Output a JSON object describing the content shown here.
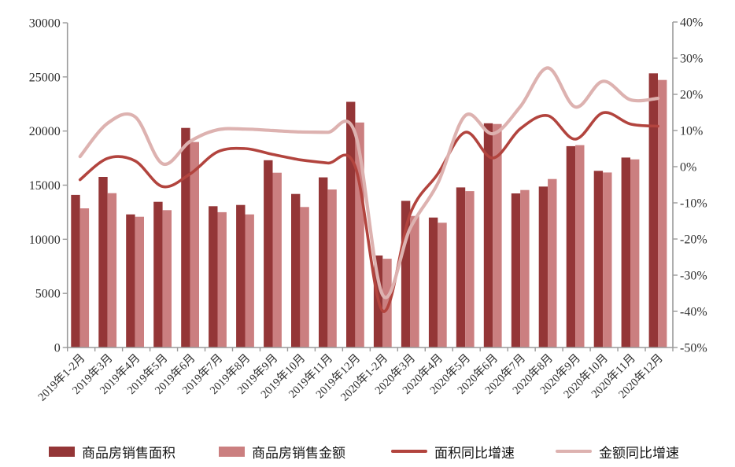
{
  "chart_data": {
    "type": "combo-bar-line",
    "title": "",
    "categories": [
      "2019年1-2月",
      "2019年3月",
      "2019年4月",
      "2019年5月",
      "2019年6月",
      "2019年7月",
      "2019年8月",
      "2019年9月",
      "2019年10月",
      "2019年11月",
      "2019年12月",
      "2020年1-2月",
      "2020年3月",
      "2020年4月",
      "2020年5月",
      "2020年6月",
      "2020年7月",
      "2020年8月",
      "2020年9月",
      "2020年10月",
      "2020年11月",
      "2020年12月"
    ],
    "bar_series": [
      {
        "name": "商品房销售面积",
        "color": "#943637",
        "values": [
          14100,
          15760,
          12300,
          13460,
          20290,
          13050,
          13170,
          17300,
          14190,
          15720,
          22700,
          8500,
          13550,
          12010,
          14790,
          20720,
          14240,
          14870,
          18600,
          16320,
          17550,
          25330
        ]
      },
      {
        "name": "商品房销售金额",
        "color": "#cb7f80",
        "values": [
          12860,
          14260,
          12080,
          12690,
          18990,
          12500,
          12300,
          16150,
          12980,
          14600,
          20790,
          8200,
          12150,
          11530,
          14450,
          20650,
          14550,
          15570,
          18700,
          16170,
          17380,
          24720
        ]
      }
    ],
    "line_series": [
      {
        "name": "面积同比增速",
        "color": "#b2443e",
        "stroke_width": 3.6,
        "values": [
          -3.6,
          2.3,
          1.6,
          -5.5,
          -2.0,
          4.1,
          5.0,
          3.4,
          1.9,
          1.0,
          0.0,
          -39.9,
          -13.0,
          -2.0,
          9.5,
          2.4,
          10.5,
          14.1,
          7.6,
          14.9,
          11.8,
          11.2
        ]
      },
      {
        "name": "金额同比增速",
        "color": "#ddb2b0",
        "stroke_width": 4.2,
        "values": [
          2.8,
          12.0,
          13.8,
          0.8,
          7.0,
          10.2,
          10.4,
          10.0,
          9.6,
          9.5,
          9.2,
          -35.5,
          -17.0,
          -4.6,
          14.1,
          9.1,
          16.6,
          27.3,
          16.5,
          23.6,
          18.5,
          18.9
        ]
      }
    ],
    "left_axis": {
      "min": 0,
      "max": 30000,
      "tick_values": [
        0,
        5000,
        10000,
        15000,
        20000,
        25000,
        30000
      ],
      "tick_labels": [
        "0",
        "5000",
        "10000",
        "15000",
        "20000",
        "25000",
        "30000"
      ]
    },
    "right_axis": {
      "min": -50,
      "max": 40,
      "tick_values": [
        -50,
        -40,
        -30,
        -20,
        -10,
        0,
        10,
        20,
        30,
        40
      ],
      "tick_labels": [
        "-50%",
        "-40%",
        "-30%",
        "-20%",
        "-10%",
        "0%",
        "10%",
        "20%",
        "30%",
        "40%"
      ]
    },
    "grid": false,
    "legend_position": "bottom",
    "axis_color": "#9a9a9a",
    "tick_text_color": "#2e2e2e",
    "xlabel": "",
    "ylabel": ""
  }
}
